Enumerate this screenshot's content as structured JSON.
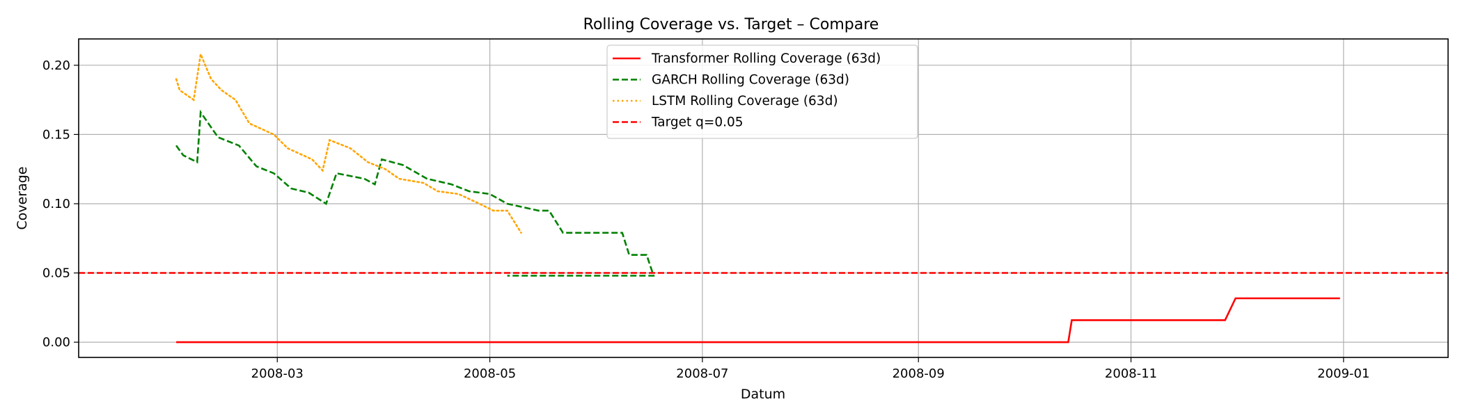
{
  "chart_data": {
    "type": "line",
    "title": "Rolling Coverage vs. Target – Compare",
    "xlabel": "Datum",
    "ylabel": "Coverage",
    "xlim": [
      "2008-01-04",
      "2009-01-31"
    ],
    "ylim": [
      -0.011,
      0.219
    ],
    "grid": true,
    "legend_position": "top-center",
    "x_ticks": [
      {
        "date": "2008-03-01",
        "label": "2008-03"
      },
      {
        "date": "2008-05-01",
        "label": "2008-05"
      },
      {
        "date": "2008-07-01",
        "label": "2008-07"
      },
      {
        "date": "2008-09-01",
        "label": "2008-09"
      },
      {
        "date": "2008-11-01",
        "label": "2008-11"
      },
      {
        "date": "2009-01-01",
        "label": "2009-01"
      }
    ],
    "y_ticks": [
      {
        "value": 0.0,
        "label": "0.00"
      },
      {
        "value": 0.05,
        "label": "0.05"
      },
      {
        "value": 0.1,
        "label": "0.10"
      },
      {
        "value": 0.15,
        "label": "0.15"
      },
      {
        "value": 0.2,
        "label": "0.20"
      }
    ],
    "series": [
      {
        "name": "Transformer Rolling Coverage (63d)",
        "color": "#ff0000",
        "style": "solid",
        "points": [
          [
            "2008-02-01",
            0.0
          ],
          [
            "2008-10-14",
            0.0
          ],
          [
            "2008-10-15",
            0.0159
          ],
          [
            "2008-11-28",
            0.0159
          ],
          [
            "2008-12-01",
            0.0317
          ],
          [
            "2008-12-31",
            0.0317
          ]
        ]
      },
      {
        "name": "GARCH Rolling Coverage (63d)",
        "color": "#008000",
        "style": "dashed",
        "points": [
          [
            "2008-02-01",
            0.142
          ],
          [
            "2008-02-03",
            0.135
          ],
          [
            "2008-02-07",
            0.13
          ],
          [
            "2008-02-08",
            0.166
          ],
          [
            "2008-02-13",
            0.148
          ],
          [
            "2008-02-19",
            0.142
          ],
          [
            "2008-02-24",
            0.127
          ],
          [
            "2008-02-29",
            0.122
          ],
          [
            "2008-03-05",
            0.111
          ],
          [
            "2008-03-10",
            0.108
          ],
          [
            "2008-03-15",
            0.1
          ],
          [
            "2008-03-18",
            0.122
          ],
          [
            "2008-03-26",
            0.118
          ],
          [
            "2008-03-29",
            0.114
          ],
          [
            "2008-03-31",
            0.132
          ],
          [
            "2008-04-06",
            0.128
          ],
          [
            "2008-04-13",
            0.118
          ],
          [
            "2008-04-20",
            0.114
          ],
          [
            "2008-04-25",
            0.109
          ],
          [
            "2008-05-01",
            0.107
          ],
          [
            "2008-05-06",
            0.1
          ],
          [
            "2008-05-15",
            0.095
          ],
          [
            "2008-05-18",
            0.095
          ],
          [
            "2008-05-22",
            0.079
          ],
          [
            "2008-06-08",
            0.079
          ],
          [
            "2008-06-10",
            0.063
          ],
          [
            "2008-06-15",
            0.063
          ],
          [
            "2008-06-17",
            0.048
          ],
          [
            "2008-05-06",
            0.048
          ]
        ]
      },
      {
        "name": "LSTM Rolling Coverage (63d)",
        "color": "#ffa500",
        "style": "dotted",
        "points": [
          [
            "2008-02-01",
            0.19
          ],
          [
            "2008-02-02",
            0.182
          ],
          [
            "2008-02-06",
            0.175
          ],
          [
            "2008-02-08",
            0.208
          ],
          [
            "2008-02-11",
            0.19
          ],
          [
            "2008-02-14",
            0.182
          ],
          [
            "2008-02-18",
            0.175
          ],
          [
            "2008-02-22",
            0.158
          ],
          [
            "2008-02-29",
            0.15
          ],
          [
            "2008-03-04",
            0.14
          ],
          [
            "2008-03-11",
            0.132
          ],
          [
            "2008-03-14",
            0.124
          ],
          [
            "2008-03-16",
            0.146
          ],
          [
            "2008-03-22",
            0.14
          ],
          [
            "2008-03-27",
            0.13
          ],
          [
            "2008-04-01",
            0.125
          ],
          [
            "2008-04-05",
            0.118
          ],
          [
            "2008-04-12",
            0.115
          ],
          [
            "2008-04-16",
            0.109
          ],
          [
            "2008-04-22",
            0.107
          ],
          [
            "2008-04-28",
            0.1
          ],
          [
            "2008-05-02",
            0.095
          ],
          [
            "2008-05-06",
            0.095
          ],
          [
            "2008-05-10",
            0.079
          ]
        ]
      },
      {
        "name": "Target q=0.05",
        "color": "#ff0000",
        "style": "dashed",
        "points": [
          [
            "2008-01-04",
            0.05
          ],
          [
            "2009-01-31",
            0.05
          ]
        ]
      }
    ]
  }
}
